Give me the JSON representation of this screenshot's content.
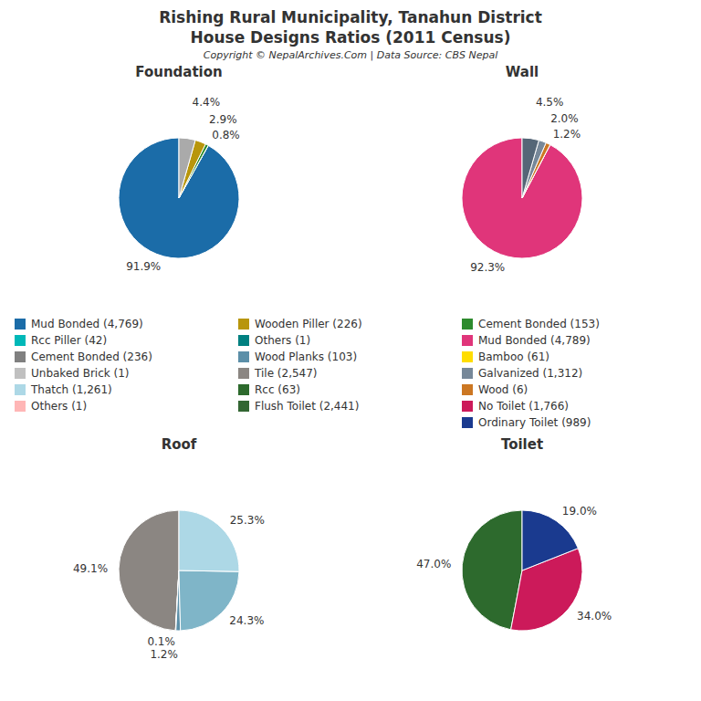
{
  "title": "Rishing Rural Municipality, Tanahun District",
  "subtitle": "House Designs Ratios (2011 Census)",
  "annotations": [
    "Copyright © NepalArchives.Com | Data Source: CBS Nepal"
  ],
  "legend_entries": [
    [
      {
        "label": "Mud Bonded (4,769)",
        "color": "#1b6ca8"
      },
      {
        "label": "Rcc Piller (42)",
        "color": "#00b8b8"
      },
      {
        "label": "Cement Bonded (236)",
        "color": "#808080"
      },
      {
        "label": "Unbaked Brick (1)",
        "color": "#c0c0c0"
      },
      {
        "label": "Thatch (1,261)",
        "color": "#add8e6"
      },
      {
        "label": "Others (1)",
        "color": "#ffb6b6"
      }
    ],
    [
      {
        "label": "Wooden Piller (226)",
        "color": "#b8960c"
      },
      {
        "label": "Others (1)",
        "color": "#008080"
      },
      {
        "label": "Wood Planks (103)",
        "color": "#5b8fa8"
      },
      {
        "label": "Tile (2,547)",
        "color": "#8b8682"
      },
      {
        "label": "Rcc (63)",
        "color": "#2d6a2d"
      },
      {
        "label": "Flush Toilet (2,441)",
        "color": "#336633"
      }
    ],
    [
      {
        "label": "Cement Bonded (153)",
        "color": "#2e8b2e"
      },
      {
        "label": "Mud Bonded (4,789)",
        "color": "#e0357a"
      },
      {
        "label": "Bamboo (61)",
        "color": "#ffdd00"
      },
      {
        "label": "Galvanized (1,312)",
        "color": "#778899"
      },
      {
        "label": "Wood (6)",
        "color": "#cc7722"
      },
      {
        "label": "No Toilet (1,766)",
        "color": "#cc1a5a"
      },
      {
        "label": "Ordinary Toilet (989)",
        "color": "#1a3a8f"
      }
    ]
  ],
  "chart_data": [
    {
      "type": "pie",
      "title": "Foundation",
      "values": [
        91.9,
        0.0385,
        0.8,
        2.9,
        4.4
      ],
      "value_labels": [
        "91.9%",
        null,
        "0.8%",
        "2.9%",
        "4.4%"
      ],
      "colors": [
        "#1b6ca8",
        "#00b8b8",
        "#2e8b2e",
        "#b8960c",
        "#aaaaaa"
      ],
      "data_labels": true
    },
    {
      "type": "pie",
      "title": "Wall",
      "values": [
        92.3,
        0.0193,
        1.2,
        2.0,
        4.5
      ],
      "value_labels": [
        "92.3%",
        null,
        "1.2%",
        "2.0%",
        "4.5%"
      ],
      "colors": [
        "#e0357a",
        "#ffdd00",
        "#cc7722",
        "#778899",
        "#556677"
      ],
      "data_labels": true
    },
    {
      "type": "pie",
      "title": "Roof",
      "values": [
        49.1,
        0.0193,
        0.1,
        1.2,
        24.3,
        25.3
      ],
      "value_labels": [
        "49.1%",
        null,
        "0.1%",
        "1.2%",
        "24.3%",
        "25.3%"
      ],
      "colors": [
        "#8b8682",
        "#2d6a2d",
        "#336666",
        "#5b8fa8",
        "#7fb5c8",
        "#add8e6"
      ],
      "data_labels": true
    },
    {
      "type": "pie",
      "title": "Toilet",
      "values": [
        47.0,
        34.0,
        19.0
      ],
      "value_labels": [
        "47.0%",
        "34.0%",
        "19.0%"
      ],
      "colors": [
        "#2d6a2d",
        "#cc1a5a",
        "#1a3a8f"
      ],
      "data_labels": true
    }
  ]
}
